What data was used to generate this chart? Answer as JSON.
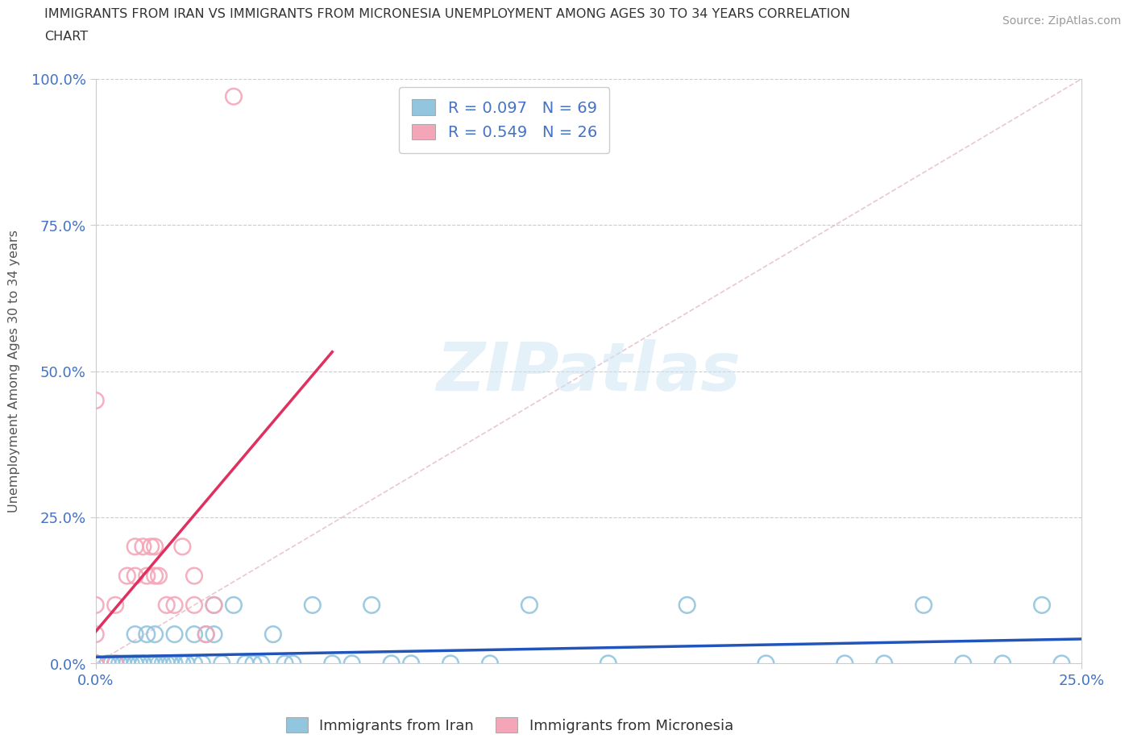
{
  "title_line1": "IMMIGRANTS FROM IRAN VS IMMIGRANTS FROM MICRONESIA UNEMPLOYMENT AMONG AGES 30 TO 34 YEARS CORRELATION",
  "title_line2": "CHART",
  "source": "Source: ZipAtlas.com",
  "ylabel": "Unemployment Among Ages 30 to 34 years",
  "xlim": [
    0,
    0.25
  ],
  "ylim": [
    0,
    1.0
  ],
  "iran_color": "#92c5de",
  "iran_edge_color": "#6aadd5",
  "micronesia_color": "#f4a6b8",
  "micronesia_edge_color": "#e888a0",
  "iran_line_color": "#2255bb",
  "micronesia_line_color": "#e03060",
  "diag_line_color": "#e0b0c0",
  "iran_label": "Immigrants from Iran",
  "micronesia_label": "Immigrants from Micronesia",
  "iran_R": "0.097",
  "iran_N": "69",
  "micronesia_R": "0.549",
  "micronesia_N": "26",
  "watermark": "ZIPatlas",
  "iran_x": [
    0.0,
    0.0,
    0.0,
    0.0,
    0.0,
    0.0,
    0.0,
    0.0,
    0.0,
    0.0,
    0.003,
    0.004,
    0.005,
    0.005,
    0.006,
    0.007,
    0.008,
    0.009,
    0.01,
    0.01,
    0.01,
    0.011,
    0.012,
    0.012,
    0.013,
    0.014,
    0.015,
    0.015,
    0.016,
    0.017,
    0.018,
    0.019,
    0.02,
    0.02,
    0.022,
    0.023,
    0.025,
    0.025,
    0.027,
    0.028,
    0.03,
    0.03,
    0.032,
    0.035,
    0.038,
    0.04,
    0.042,
    0.045,
    0.048,
    0.05,
    0.055,
    0.06,
    0.065,
    0.07,
    0.075,
    0.08,
    0.09,
    0.1,
    0.11,
    0.13,
    0.15,
    0.17,
    0.19,
    0.2,
    0.21,
    0.22,
    0.23,
    0.24,
    0.245
  ],
  "iran_y": [
    0.0,
    0.0,
    0.0,
    0.0,
    0.0,
    0.0,
    0.0,
    0.0,
    0.0,
    0.0,
    0.0,
    0.0,
    0.0,
    0.0,
    0.0,
    0.0,
    0.0,
    0.0,
    0.0,
    0.0,
    0.05,
    0.0,
    0.0,
    0.0,
    0.05,
    0.0,
    0.0,
    0.05,
    0.0,
    0.0,
    0.0,
    0.0,
    0.0,
    0.05,
    0.0,
    0.0,
    0.0,
    0.05,
    0.0,
    0.05,
    0.05,
    0.1,
    0.0,
    0.1,
    0.0,
    0.0,
    0.0,
    0.05,
    0.0,
    0.0,
    0.1,
    0.0,
    0.0,
    0.1,
    0.0,
    0.0,
    0.0,
    0.0,
    0.1,
    0.0,
    0.1,
    0.0,
    0.0,
    0.0,
    0.1,
    0.0,
    0.0,
    0.1,
    0.0
  ],
  "micronesia_x": [
    0.0,
    0.0,
    0.0,
    0.0,
    0.0,
    0.0,
    0.0,
    0.005,
    0.005,
    0.008,
    0.01,
    0.01,
    0.012,
    0.013,
    0.014,
    0.015,
    0.015,
    0.016,
    0.018,
    0.02,
    0.022,
    0.025,
    0.025,
    0.028,
    0.03,
    0.035
  ],
  "micronesia_y": [
    0.0,
    0.0,
    0.0,
    0.0,
    0.05,
    0.1,
    0.45,
    0.0,
    0.1,
    0.15,
    0.15,
    0.2,
    0.2,
    0.15,
    0.2,
    0.15,
    0.2,
    0.15,
    0.1,
    0.1,
    0.2,
    0.1,
    0.15,
    0.05,
    0.1,
    0.97
  ]
}
